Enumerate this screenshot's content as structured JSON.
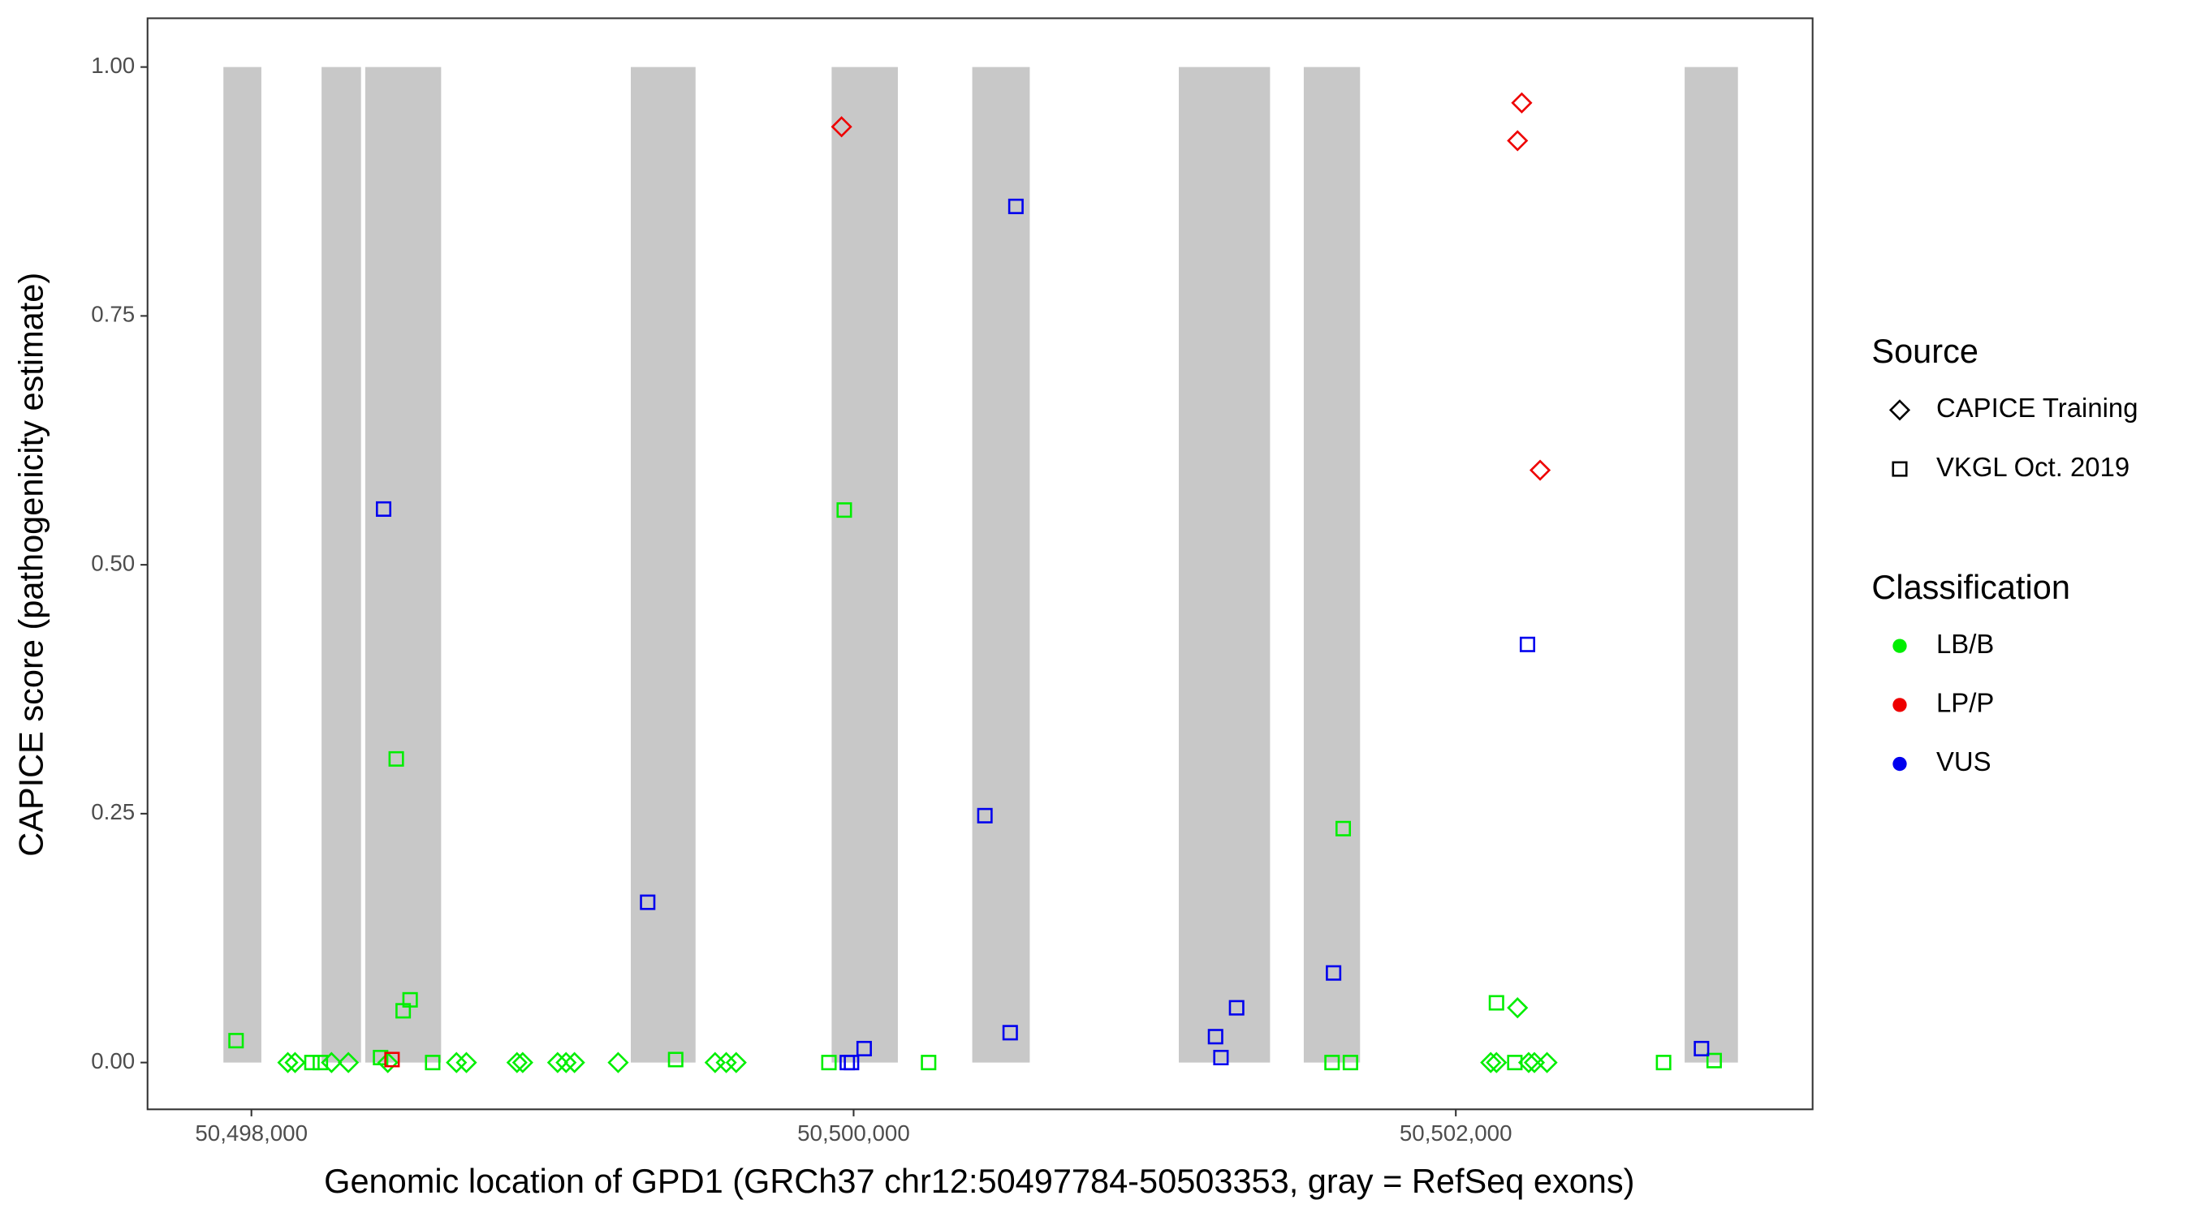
{
  "chart_data": {
    "type": "scatter",
    "x_label": "Genomic location of GPD1 (GRCh37 chr12:50497784-50503353, gray = RefSeq exons)",
    "y_label": "CAPICE score (pathogenicity estimate)",
    "xlim": [
      50497655,
      50503185
    ],
    "ylim": [
      -0.047,
      1.049
    ],
    "xticks": [
      {
        "value": 50498000,
        "label": "50,498,000"
      },
      {
        "value": 50500000,
        "label": "50,500,000"
      },
      {
        "value": 50502000,
        "label": "50,502,000"
      }
    ],
    "yticks": [
      {
        "value": 0,
        "label": "0.00"
      },
      {
        "value": 0.25,
        "label": "0.25"
      },
      {
        "value": 0.5,
        "label": "0.50"
      },
      {
        "value": 0.75,
        "label": "0.75"
      },
      {
        "value": 1,
        "label": "1.00"
      }
    ],
    "grid": false,
    "exon_color": "#c8c8c8",
    "exon_ylim": [
      0,
      1
    ],
    "exons": [
      [
        50497907,
        50498033
      ],
      [
        50498233,
        50498364
      ],
      [
        50498378,
        50498630
      ],
      [
        50499260,
        50499475
      ],
      [
        50499927,
        50500147
      ],
      [
        50500394,
        50500585
      ],
      [
        50501080,
        50501383
      ],
      [
        50501495,
        50501682
      ],
      [
        50502760,
        50502937
      ]
    ],
    "shape_legend": {
      "title": "Source",
      "entries": [
        {
          "name": "CAPICE Training",
          "shape": "diamond"
        },
        {
          "name": "VKGL Oct. 2019",
          "shape": "square"
        }
      ]
    },
    "color_legend_title": "Classification",
    "series": [
      {
        "name": "LB/B",
        "color": "#00ee00",
        "x": [
          50497949,
          50498121,
          50498145,
          50498201,
          50498229,
          50498266,
          50498322,
          50498429,
          50498453,
          50498481,
          50498504,
          50498527,
          50498602,
          50498681,
          50498714,
          50498882,
          50498901,
          50499017,
          50499045,
          50499073,
          50499218,
          50499409,
          50499540,
          50499577,
          50499610,
          50499918,
          50499969,
          50500249,
          50501589,
          50501650,
          50501626,
          50502135,
          50502205,
          50502116,
          50502135,
          50502196,
          50502242,
          50502261,
          50502303,
          50502690,
          50502858
        ],
        "values": [
          0.022,
          0,
          0,
          0,
          0,
          0,
          0,
          0.005,
          0,
          0.305,
          0.052,
          0.063,
          0,
          0,
          0,
          0,
          0,
          0,
          0,
          0,
          0,
          0.003,
          0,
          0,
          0,
          0,
          0.555,
          0,
          0,
          0,
          0.235,
          0.06,
          0.055,
          0,
          0,
          0,
          0,
          0,
          0,
          0,
          0.002
        ],
        "source": [
          "VKGL Oct. 2019",
          "CAPICE Training",
          "CAPICE Training",
          "VKGL Oct. 2019",
          "VKGL Oct. 2019",
          "CAPICE Training",
          "CAPICE Training",
          "VKGL Oct. 2019",
          "CAPICE Training",
          "VKGL Oct. 2019",
          "VKGL Oct. 2019",
          "VKGL Oct. 2019",
          "VKGL Oct. 2019",
          "CAPICE Training",
          "CAPICE Training",
          "CAPICE Training",
          "CAPICE Training",
          "CAPICE Training",
          "CAPICE Training",
          "CAPICE Training",
          "CAPICE Training",
          "VKGL Oct. 2019",
          "CAPICE Training",
          "CAPICE Training",
          "CAPICE Training",
          "VKGL Oct. 2019",
          "VKGL Oct. 2019",
          "VKGL Oct. 2019",
          "VKGL Oct. 2019",
          "VKGL Oct. 2019",
          "VKGL Oct. 2019",
          "VKGL Oct. 2019",
          "CAPICE Training",
          "CAPICE Training",
          "CAPICE Training",
          "VKGL Oct. 2019",
          "CAPICE Training",
          "CAPICE Training",
          "CAPICE Training",
          "VKGL Oct. 2019",
          "VKGL Oct. 2019"
        ]
      },
      {
        "name": "LP/P",
        "color": "#ee0000",
        "x": [
          50498467,
          50499960,
          50502219,
          50502205,
          50502280
        ],
        "values": [
          0.003,
          0.94,
          0.964,
          0.926,
          0.595
        ],
        "source": [
          "VKGL Oct. 2019",
          "CAPICE Training",
          "CAPICE Training",
          "CAPICE Training",
          "CAPICE Training"
        ]
      },
      {
        "name": "VUS",
        "color": "#0000ee",
        "x": [
          50498439,
          50499316,
          50499979,
          50499993,
          50500035,
          50500436,
          50500539,
          50500520,
          50501202,
          50501220,
          50501272,
          50501594,
          50502238,
          50502816
        ],
        "values": [
          0.556,
          0.161,
          0,
          0,
          0.014,
          0.248,
          0.86,
          0.03,
          0.026,
          0.005,
          0.055,
          0.09,
          0.42,
          0.014
        ],
        "source": [
          "VKGL Oct. 2019",
          "VKGL Oct. 2019",
          "VKGL Oct. 2019",
          "VKGL Oct. 2019",
          "VKGL Oct. 2019",
          "VKGL Oct. 2019",
          "VKGL Oct. 2019",
          "VKGL Oct. 2019",
          "VKGL Oct. 2019",
          "VKGL Oct. 2019",
          "VKGL Oct. 2019",
          "VKGL Oct. 2019",
          "VKGL Oct. 2019",
          "VKGL Oct. 2019"
        ]
      }
    ]
  }
}
